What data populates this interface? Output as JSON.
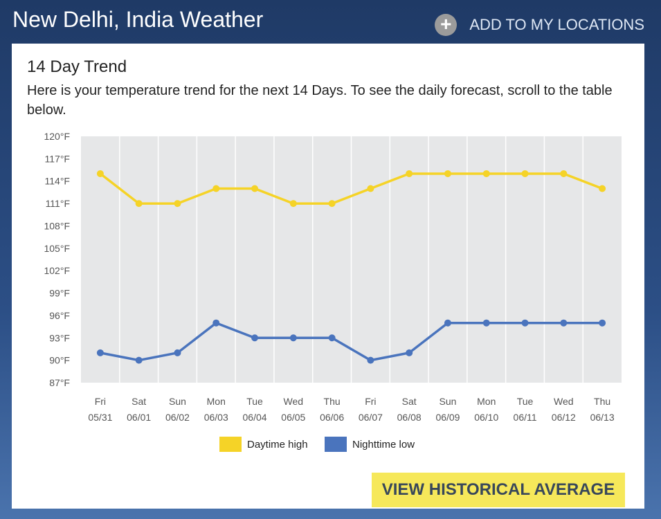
{
  "header": {
    "title": "New Delhi, India Weather",
    "add_label": "ADD TO MY LOCATIONS",
    "add_icon": "plus-circle-icon",
    "add_icon_glyph": "+"
  },
  "card": {
    "heading": "14 Day Trend",
    "description": "Here is your temperature trend for the next 14 Days. To see the daily forecast, scroll to the table below.",
    "button_label": "VIEW HISTORICAL AVERAGE"
  },
  "chart_data": {
    "type": "line",
    "categories": [
      [
        "Fri",
        "05/31"
      ],
      [
        "Sat",
        "06/01"
      ],
      [
        "Sun",
        "06/02"
      ],
      [
        "Mon",
        "06/03"
      ],
      [
        "Tue",
        "06/04"
      ],
      [
        "Wed",
        "06/05"
      ],
      [
        "Thu",
        "06/06"
      ],
      [
        "Fri",
        "06/07"
      ],
      [
        "Sat",
        "06/08"
      ],
      [
        "Sun",
        "06/09"
      ],
      [
        "Mon",
        "06/10"
      ],
      [
        "Tue",
        "06/11"
      ],
      [
        "Wed",
        "06/12"
      ],
      [
        "Thu",
        "06/13"
      ]
    ],
    "yticks": [
      "120°F",
      "117°F",
      "114°F",
      "111°F",
      "108°F",
      "105°F",
      "102°F",
      "99°F",
      "96°F",
      "93°F",
      "90°F",
      "87°F"
    ],
    "ylim": [
      87,
      120
    ],
    "series": [
      {
        "name": "Daytime high",
        "color": "#f5d327",
        "values": [
          115,
          111,
          111,
          113,
          113,
          111,
          111,
          113,
          115,
          115,
          115,
          115,
          115,
          113
        ]
      },
      {
        "name": "Nighttime low",
        "color": "#4a74bd",
        "values": [
          91,
          90,
          91,
          95,
          93,
          93,
          93,
          90,
          91,
          95,
          95,
          95,
          95,
          95
        ]
      }
    ],
    "legend": "bottom-center"
  }
}
